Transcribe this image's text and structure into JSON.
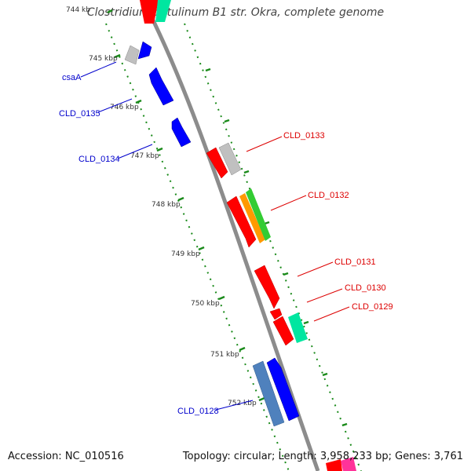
{
  "title": "Clostridium botulinum B1 str. Okra, complete genome",
  "accession": "Accession: NC_010516",
  "topology": "Topology: circular; Length: 3,958,233 bp; Genes: 3,761",
  "ticks": [
    "744 kb",
    "745 kbp",
    "746 kbp",
    "747 kbp",
    "748 kbp",
    "749 kbp",
    "750 kbp",
    "751 kbp",
    "752 kbp"
  ],
  "labels_left": [
    "csaA",
    "CLD_0135",
    "CLD_0134",
    "CLD_0128"
  ],
  "labels_right": [
    "CLD_0133",
    "CLD_0132",
    "CLD_0131",
    "CLD_0130",
    "CLD_0129"
  ],
  "colors": {
    "backbone": "#8c8c8c",
    "tick": "#1a8a1a",
    "reverse_label": "#0000cc",
    "forward_label": "#dd0000",
    "blue": "#0000ff",
    "steel": "#4f81bd",
    "red": "#ff0000",
    "orange": "#ff9900",
    "green": "#33cc33",
    "aqua": "#00e6a0",
    "grey": "#c0c0c0",
    "pink": "#ff3399"
  }
}
